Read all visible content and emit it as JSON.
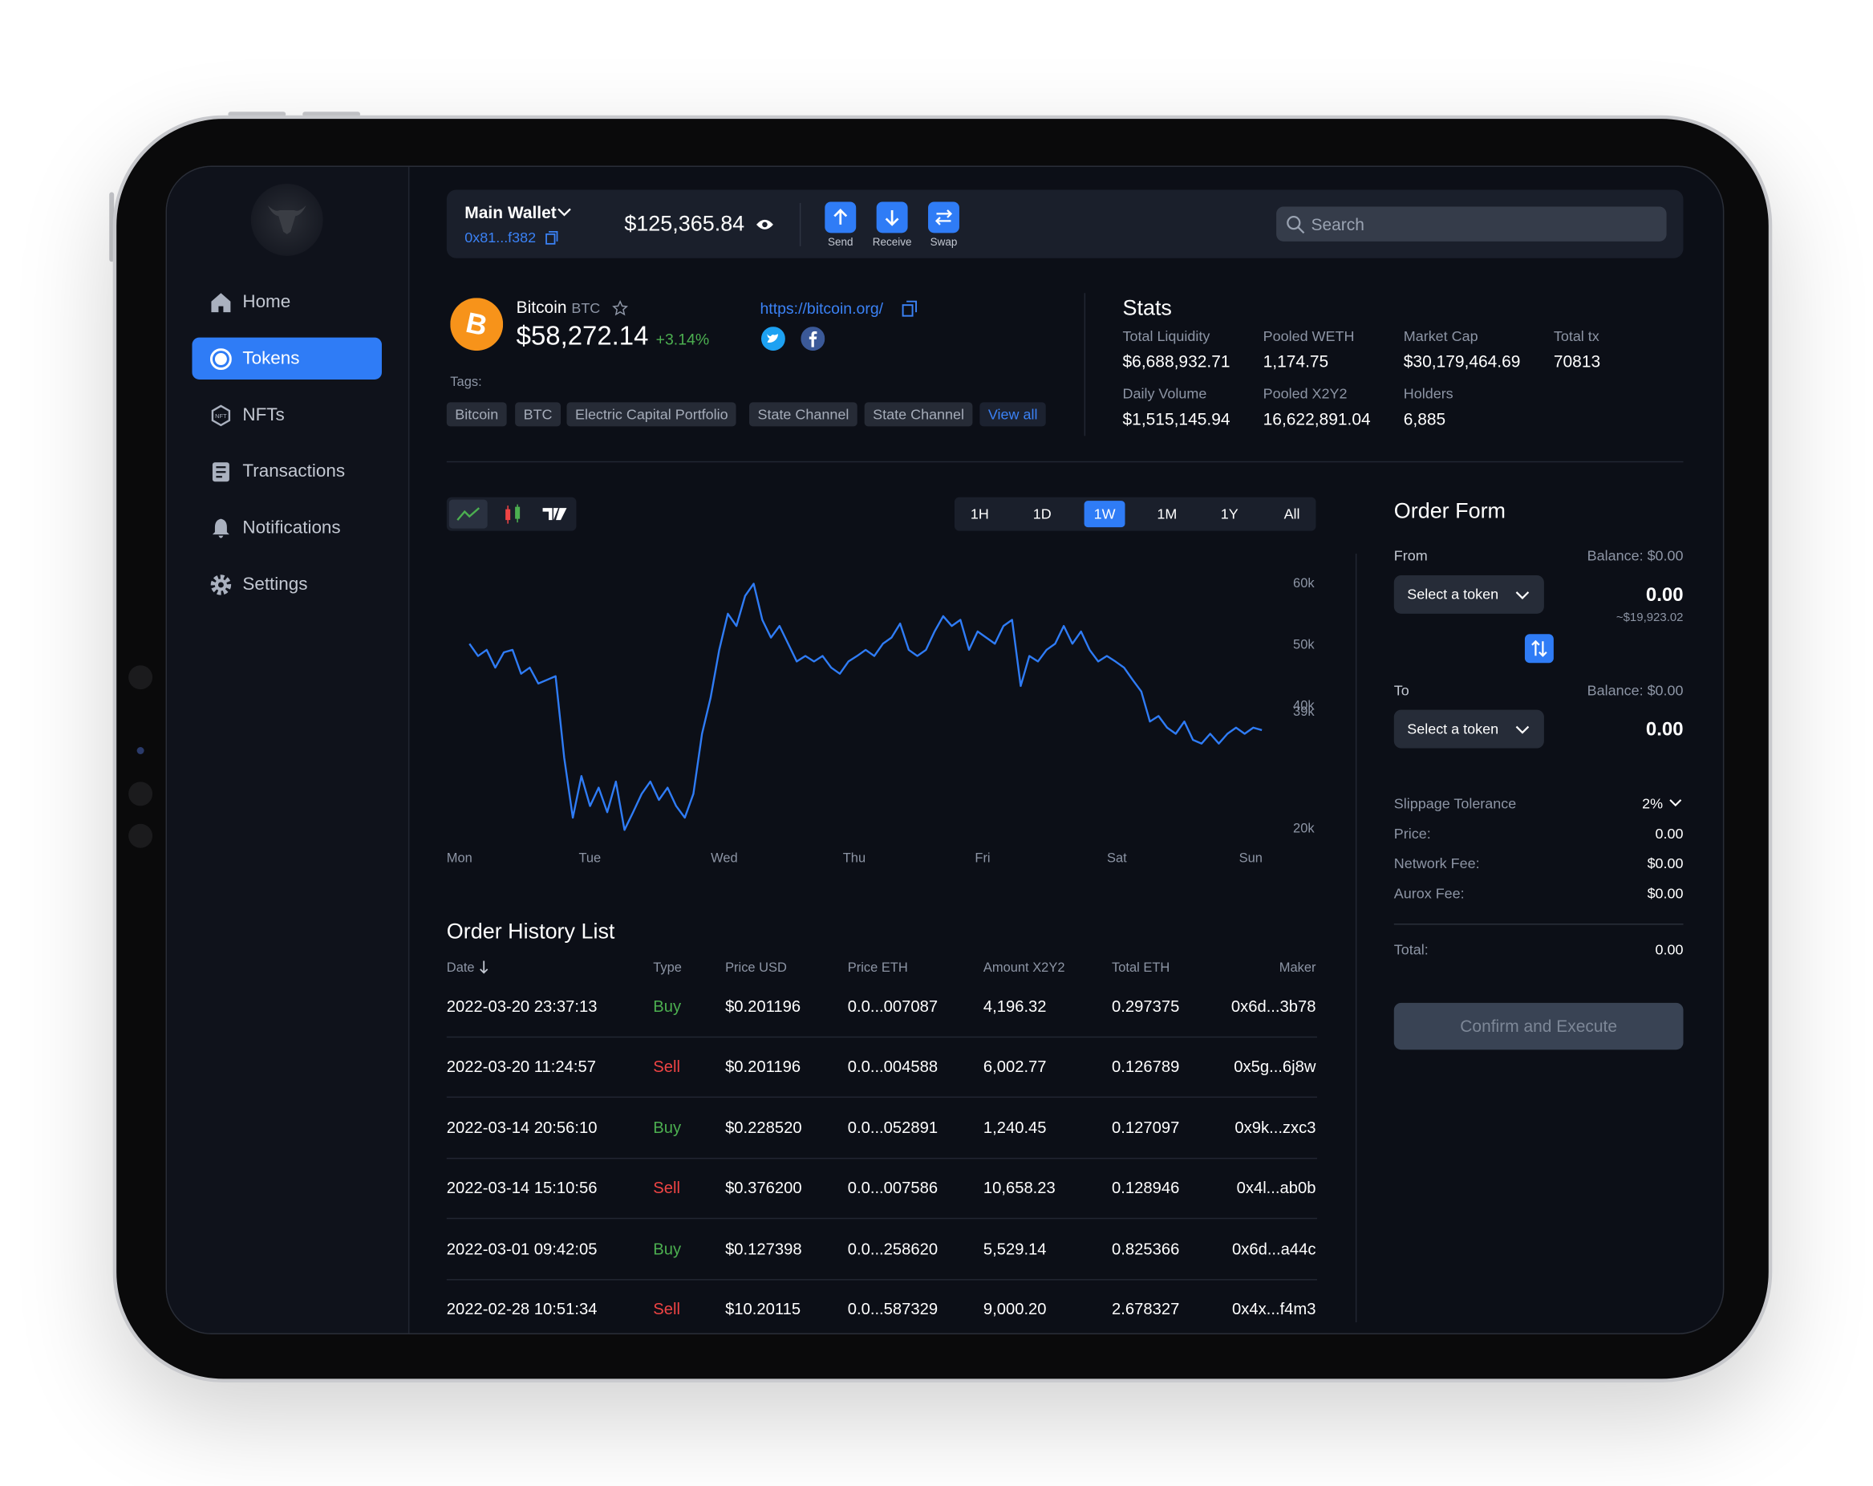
{
  "sidebar": {
    "nav": [
      "Home",
      "Tokens",
      "NFTs",
      "Transactions",
      "Notifications",
      "Settings"
    ],
    "active": 1
  },
  "topbar": {
    "wallet_name": "Main Wallet",
    "address": "0x81...f382",
    "balance": "$125,365.84",
    "actions": [
      "Send",
      "Receive",
      "Swap"
    ],
    "search_placeholder": "Search"
  },
  "token": {
    "name": "Bitcoin",
    "symbol": "BTC",
    "price": "$58,272.14",
    "change": "+3.14%",
    "url": "https://bitcoin.org/",
    "tags_label": "Tags:",
    "tags": [
      "Bitcoin",
      "BTC",
      "Electric Capital Portfolio",
      "State Channel",
      "State Channel"
    ],
    "view_all": "View all"
  },
  "stats": {
    "title": "Stats",
    "items": [
      {
        "label": "Total Liquidity",
        "value": "$6,688,932.71"
      },
      {
        "label": "Pooled WETH",
        "value": "1,174.75"
      },
      {
        "label": "Market Cap",
        "value": "$30,179,464.69"
      },
      {
        "label": "Total tx",
        "value": "70813"
      },
      {
        "label": "Daily Volume",
        "value": "$1,515,145.94"
      },
      {
        "label": "Pooled X2Y2",
        "value": "16,622,891.04"
      },
      {
        "label": "Holders",
        "value": "6,885"
      }
    ]
  },
  "price_chart": {
    "type": "line",
    "ranges": [
      "1H",
      "1D",
      "1W",
      "1M",
      "1Y",
      "All"
    ],
    "active_range": 2,
    "x_labels": [
      "Mon",
      "Tue",
      "Wed",
      "Thu",
      "Fri",
      "Sat",
      "Sun"
    ],
    "color": "#2f7cf6",
    "ylim": [
      18000,
      62000
    ],
    "yticks": [
      {
        "value": 60000,
        "label": "60k"
      },
      {
        "value": 50000,
        "label": "50k"
      },
      {
        "value": 40000,
        "label": "40k"
      },
      {
        "value": 39000,
        "label": "39k"
      },
      {
        "value": 20000,
        "label": "20k"
      }
    ],
    "values": [
      50000,
      48000,
      49000,
      46100,
      48600,
      49000,
      45100,
      46100,
      43500,
      44100,
      44700,
      31400,
      21600,
      28400,
      23500,
      26500,
      22500,
      27500,
      19600,
      22500,
      25500,
      27500,
      24500,
      26500,
      23500,
      21600,
      25500,
      35300,
      41200,
      49000,
      54900,
      52900,
      57800,
      59800,
      53900,
      51000,
      52900,
      50000,
      47100,
      48000,
      47100,
      48000,
      46100,
      45100,
      47100,
      48000,
      49000,
      48000,
      50000,
      51000,
      53300,
      49000,
      48000,
      49000,
      52000,
      54500,
      52900,
      53900,
      49000,
      52000,
      51000,
      50000,
      52900,
      53900,
      43100,
      48000,
      47100,
      49000,
      50000,
      52900,
      50000,
      52000,
      49000,
      47100,
      48000,
      47100,
      46100,
      44100,
      42200,
      37300,
      38200,
      36300,
      35300,
      37300,
      34300,
      33700,
      35300,
      33700,
      35300,
      36300,
      35300,
      36300,
      35900
    ]
  },
  "order_history": {
    "title": "Order History List",
    "columns": [
      "Date",
      "Type",
      "Price USD",
      "Price ETH",
      "Amount X2Y2",
      "Total ETH",
      "Maker"
    ],
    "type_colors": {
      "Buy": "#4caf50",
      "Sell": "#ef4444"
    },
    "rows": [
      [
        "2022-03-20 23:37:13",
        "Buy",
        "$0.201196",
        "0.0...007087",
        "4,196.32",
        "0.297375",
        "0x6d...3b78"
      ],
      [
        "2022-03-20 11:24:57",
        "Sell",
        "$0.201196",
        "0.0...004588",
        "6,002.77",
        "0.126789",
        "0x5g...6j8w"
      ],
      [
        "2022-03-14 20:56:10",
        "Buy",
        "$0.228520",
        "0.0...052891",
        "1,240.45",
        "0.127097",
        "0x9k...zxc3"
      ],
      [
        "2022-03-14 15:10:56",
        "Sell",
        "$0.376200",
        "0.0...007586",
        "10,658.23",
        "0.128946",
        "0x4l...ab0b"
      ],
      [
        "2022-03-01 09:42:05",
        "Buy",
        "$0.127398",
        "0.0...258620",
        "5,529.14",
        "0.825366",
        "0x6d...a44c"
      ],
      [
        "2022-02-28 10:51:34",
        "Sell",
        "$10.20115",
        "0.0...587329",
        "9,000.20",
        "2.678327",
        "0x4x...f4m3"
      ]
    ]
  },
  "order_form": {
    "title": "Order Form",
    "from_label": "From",
    "from_balance": "Balance: $0.00",
    "from_select": "Select a token",
    "from_amount": "0.00",
    "from_usd": "~$19,923.02",
    "to_label": "To",
    "to_balance": "Balance: $0.00",
    "to_select": "Select a token",
    "to_amount": "0.00",
    "details": [
      [
        "Slippage Tolerance",
        "2%"
      ],
      [
        "Price:",
        "0.00"
      ],
      [
        "Network Fee:",
        "$0.00"
      ],
      [
        "Aurox Fee:",
        "$0.00"
      ]
    ],
    "total": [
      "Total:",
      "0.00"
    ],
    "button": "Confirm and Execute"
  }
}
